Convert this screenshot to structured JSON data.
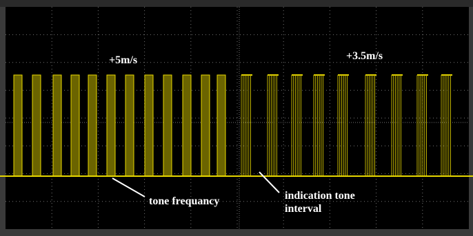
{
  "annotations": {
    "left_speed": "+5m/s",
    "right_speed": "+3.5m/s",
    "tone_frequency": "tone frequancy",
    "indication_line1": "indication tone",
    "indication_line2": "interval"
  }
}
